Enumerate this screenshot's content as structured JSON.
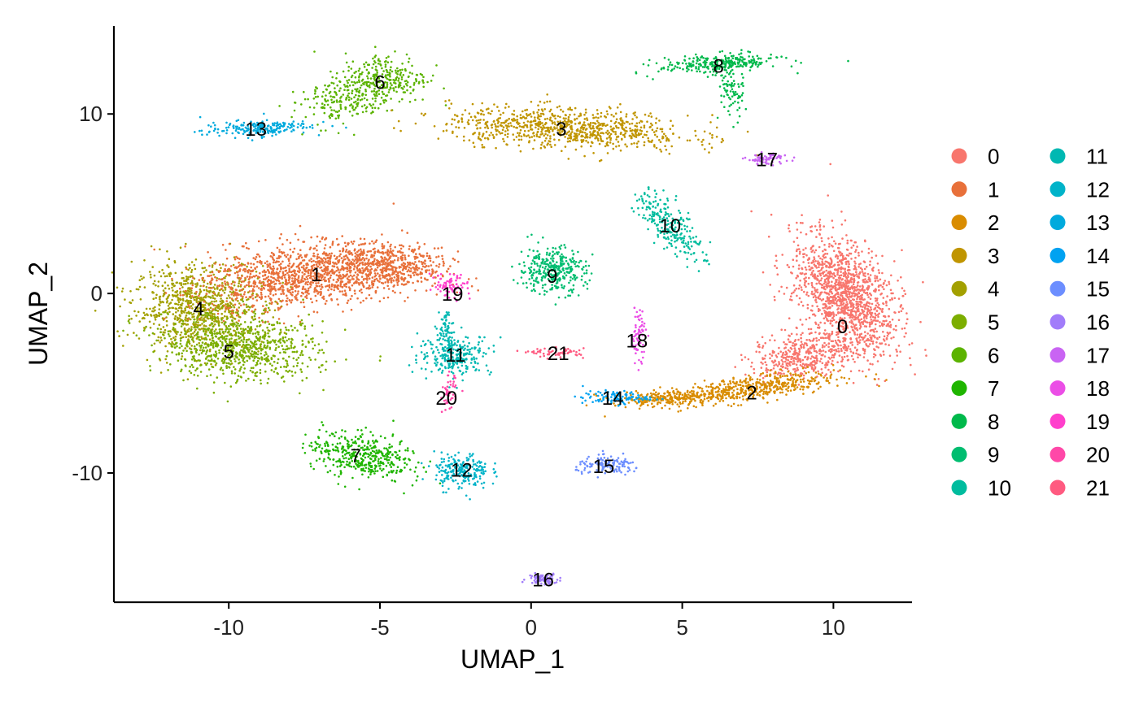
{
  "chart_data": {
    "type": "scatter",
    "xlabel": "UMAP_1",
    "ylabel": "UMAP_2",
    "xlim": [
      -13.8,
      12.6
    ],
    "ylim": [
      -17.2,
      14.9
    ],
    "xticks": [
      -10,
      -5,
      0,
      5,
      10
    ],
    "yticks": [
      -10,
      0,
      10
    ],
    "xtick_labels": [
      "-10",
      "-5",
      "0",
      "5",
      "10"
    ],
    "ytick_labels": [
      "-10",
      "0",
      "10"
    ],
    "grid": false,
    "legend_position": "right",
    "legend_columns": 2,
    "clusters": [
      {
        "name": "0",
        "color": "#F8766D",
        "center": [
          10.3,
          -1.8
        ]
      },
      {
        "name": "1",
        "color": "#E8703A",
        "center": [
          -7.1,
          1.1
        ]
      },
      {
        "name": "2",
        "color": "#D98C00",
        "center": [
          7.3,
          -5.5
        ]
      },
      {
        "name": "3",
        "color": "#C09500",
        "center": [
          1.0,
          9.2
        ]
      },
      {
        "name": "4",
        "color": "#A3A000",
        "center": [
          -11.0,
          -0.8
        ]
      },
      {
        "name": "5",
        "color": "#7CAE00",
        "center": [
          -10.0,
          -3.2
        ]
      },
      {
        "name": "6",
        "color": "#5BB300",
        "center": [
          -5.0,
          11.8
        ]
      },
      {
        "name": "7",
        "color": "#1FB500",
        "center": [
          -5.8,
          -9.0
        ]
      },
      {
        "name": "8",
        "color": "#00B94B",
        "center": [
          6.2,
          12.7
        ]
      },
      {
        "name": "9",
        "color": "#00BD70",
        "center": [
          0.7,
          1.0
        ]
      },
      {
        "name": "10",
        "color": "#00BC9E",
        "center": [
          4.6,
          3.8
        ]
      },
      {
        "name": "11",
        "color": "#00B8B2",
        "center": [
          -2.5,
          -3.4
        ]
      },
      {
        "name": "12",
        "color": "#00B3C9",
        "center": [
          -2.3,
          -9.8
        ]
      },
      {
        "name": "13",
        "color": "#00AADD",
        "center": [
          -9.1,
          9.2
        ]
      },
      {
        "name": "14",
        "color": "#00A2F1",
        "center": [
          2.7,
          -5.8
        ]
      },
      {
        "name": "15",
        "color": "#6C8EFF",
        "center": [
          2.4,
          -9.6
        ]
      },
      {
        "name": "16",
        "color": "#A17CFA",
        "center": [
          0.4,
          -15.9
        ]
      },
      {
        "name": "17",
        "color": "#C964F3",
        "center": [
          7.8,
          7.5
        ]
      },
      {
        "name": "18",
        "color": "#EB4EE6",
        "center": [
          3.5,
          -2.6
        ]
      },
      {
        "name": "19",
        "color": "#FF3FCC",
        "center": [
          -2.6,
          0.0
        ]
      },
      {
        "name": "20",
        "color": "#FF48A8",
        "center": [
          -2.8,
          -5.8
        ]
      },
      {
        "name": "21",
        "color": "#FF5A80",
        "center": [
          0.9,
          -3.3
        ]
      }
    ]
  }
}
